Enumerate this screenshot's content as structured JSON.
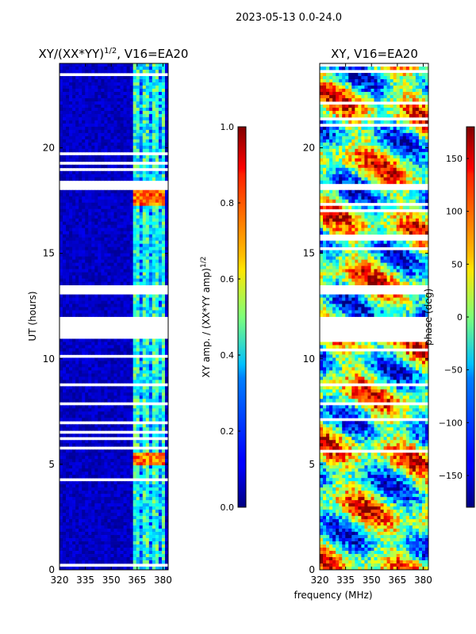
{
  "suptitle": "2023-05-13 0.0-24.0",
  "xlabel": "frequency (MHz)",
  "chart_data": [
    {
      "type": "heatmap",
      "title": "XY/(XX*YY)",
      "title_sup": "1/2",
      "title_suffix": ", V16=EA20",
      "xlabel": "frequency (MHz)",
      "ylabel": "UT (hours)",
      "xlim": [
        320,
        383
      ],
      "ylim": [
        0,
        24
      ],
      "xticks": [
        320,
        335,
        350,
        365,
        380
      ],
      "yticks": [
        0,
        5,
        10,
        15,
        20
      ],
      "colorbar": {
        "label": "XY amp. / (XX*YY amp)",
        "label_sup": "1/2",
        "range": [
          0.0,
          1.0
        ],
        "ticks": [
          "0.0",
          "0.2",
          "0.4",
          "0.6",
          "0.8",
          "1.0"
        ],
        "tick_values": [
          0.0,
          0.2,
          0.4,
          0.6,
          0.8,
          1.0
        ],
        "colormap": "jet"
      },
      "gaps_hours": [
        [
          10.95,
          12.05
        ],
        [
          7.75,
          8.0
        ],
        [
          13.05,
          13.55
        ],
        [
          18.0,
          18.3
        ]
      ],
      "bright_band_mhz": [
        362,
        382
      ],
      "peak_hours": [
        [
          5.0,
          5.6
        ],
        [
          17.2,
          18.0
        ]
      ]
    },
    {
      "type": "heatmap",
      "title": "XY, V16=EA20",
      "xlabel": "frequency (MHz)",
      "ylabel": "",
      "xlim": [
        320,
        383
      ],
      "ylim": [
        0,
        24
      ],
      "xticks": [
        320,
        335,
        350,
        365,
        380
      ],
      "yticks": [
        0,
        5,
        10,
        15,
        20
      ],
      "colorbar": {
        "label": "phase (deg)",
        "range": [
          -180,
          180
        ],
        "ticks": [
          "150",
          "100",
          "50",
          "0",
          "−50",
          "−100",
          "−150"
        ],
        "tick_values": [
          150,
          100,
          50,
          0,
          -50,
          -100,
          -150
        ],
        "colormap": "jet"
      },
      "gaps_hours": [
        [
          10.95,
          12.05
        ],
        [
          7.75,
          8.0
        ],
        [
          13.05,
          13.55
        ],
        [
          18.0,
          18.3
        ]
      ]
    }
  ]
}
